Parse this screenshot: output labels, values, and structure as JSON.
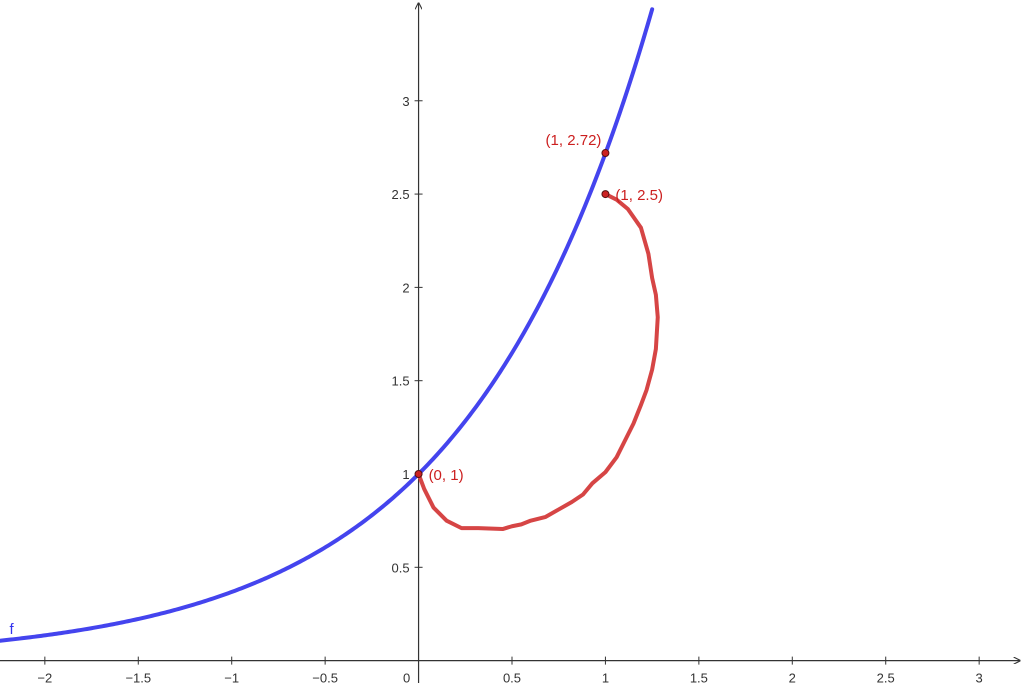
{
  "chart_data": {
    "type": "line",
    "xlim": [
      -2.24,
      3.24
    ],
    "ylim": [
      -0.12,
      3.54
    ],
    "grid": false,
    "x_ticks": [
      {
        "value": -2,
        "label": "−2"
      },
      {
        "value": -1.5,
        "label": "−1.5"
      },
      {
        "value": -1,
        "label": "−1"
      },
      {
        "value": -0.5,
        "label": "−0.5"
      },
      {
        "value": 0,
        "label": "0"
      },
      {
        "value": 0.5,
        "label": "0.5"
      },
      {
        "value": 1,
        "label": "1"
      },
      {
        "value": 1.5,
        "label": "1.5"
      },
      {
        "value": 2,
        "label": "2"
      },
      {
        "value": 2.5,
        "label": "2.5"
      },
      {
        "value": 3,
        "label": "3"
      }
    ],
    "y_ticks": [
      {
        "value": 0.5,
        "label": "0.5"
      },
      {
        "value": 1,
        "label": "1"
      },
      {
        "value": 1.5,
        "label": "1.5"
      },
      {
        "value": 2,
        "label": "2"
      },
      {
        "value": 2.5,
        "label": "2.5"
      },
      {
        "value": 3,
        "label": "3"
      }
    ],
    "series": [
      {
        "name": "f",
        "function": "exp",
        "color": "#4444ee",
        "x_range": [
          -2.24,
          1.25
        ]
      },
      {
        "color": "#d64545",
        "points": [
          [
            0,
            1
          ],
          [
            0.03,
            0.92
          ],
          [
            0.08,
            0.82
          ],
          [
            0.15,
            0.75
          ],
          [
            0.23,
            0.71
          ],
          [
            0.32,
            0.71
          ],
          [
            0.45,
            0.705
          ],
          [
            0.5,
            0.72
          ],
          [
            0.55,
            0.73
          ],
          [
            0.6,
            0.75
          ],
          [
            0.68,
            0.77
          ],
          [
            0.75,
            0.81
          ],
          [
            0.82,
            0.85
          ],
          [
            0.88,
            0.89
          ],
          [
            0.93,
            0.95
          ],
          [
            1.0,
            1.01
          ],
          [
            1.06,
            1.09
          ],
          [
            1.1,
            1.17
          ],
          [
            1.15,
            1.27
          ],
          [
            1.19,
            1.37
          ],
          [
            1.22,
            1.45
          ],
          [
            1.25,
            1.56
          ],
          [
            1.27,
            1.67
          ],
          [
            1.28,
            1.84
          ],
          [
            1.27,
            1.96
          ],
          [
            1.25,
            2.05
          ],
          [
            1.23,
            2.18
          ],
          [
            1.19,
            2.32
          ],
          [
            1.12,
            2.42
          ],
          [
            1.06,
            2.47
          ],
          [
            1.0,
            2.5
          ]
        ]
      }
    ],
    "points": [
      {
        "x": 0,
        "y": 1,
        "label": "(0, 1)",
        "label_side": "right"
      },
      {
        "x": 1,
        "y": 2.72,
        "label": "(1, 2.72)",
        "label_side": "left"
      },
      {
        "x": 1,
        "y": 2.5,
        "label": "(1, 2.5)",
        "label_side": "right"
      }
    ],
    "curve_label": {
      "text": "f",
      "x": -2.2
    }
  }
}
